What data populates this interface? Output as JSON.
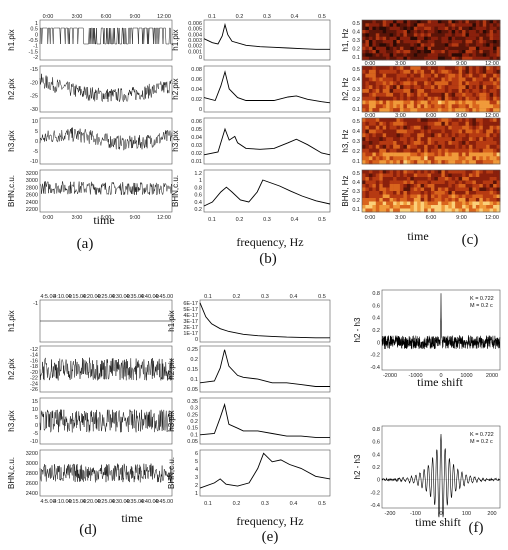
{
  "figure": {
    "panel_letters": [
      "(a)",
      "(b)",
      "(c)",
      "(d)",
      "(e)",
      "(f)"
    ],
    "time_label": "time",
    "frequency_label": "frequency, Hz",
    "time_shift_label": "time shift"
  },
  "chart_data": [
    {
      "id": "a",
      "type": "line",
      "x_kind": "time",
      "x_ticks": [
        "0:00",
        "3:00",
        "6:00",
        "9:00",
        "12:00"
      ],
      "rows": [
        {
          "ylabel": "h1.pix",
          "yticks": [
            "1",
            "0.5",
            "0",
            "-0.5",
            "-1",
            "-1.5",
            "-2"
          ]
        },
        {
          "ylabel": "h2.pix",
          "yticks": [
            "-15",
            "-20",
            "-25",
            "-30"
          ]
        },
        {
          "ylabel": "h3.pix",
          "yticks": [
            "10",
            "5",
            "0",
            "-5",
            "-10"
          ]
        },
        {
          "ylabel": "BHN,c.u.",
          "yticks": [
            "3200",
            "3000",
            "2800",
            "2600",
            "2400",
            "2200"
          ]
        }
      ]
    },
    {
      "id": "b",
      "type": "line",
      "x_kind": "frequency",
      "x_ticks": [
        "0.1",
        "0.2",
        "0.3",
        "0.4",
        "0.5"
      ],
      "xlim": [
        0.05,
        0.5
      ],
      "rows": [
        {
          "ylabel": "h1.pix",
          "yticks": [
            "0.006",
            "0.005",
            "0.004",
            "0.003",
            "0.002",
            "0.001",
            "0"
          ],
          "ylim": [
            0,
            0.006
          ],
          "points": [
            [
              0.05,
              0.0032
            ],
            [
              0.08,
              0.0026
            ],
            [
              0.1,
              0.0024
            ],
            [
              0.115,
              0.0036
            ],
            [
              0.125,
              0.0053
            ],
            [
              0.135,
              0.0038
            ],
            [
              0.15,
              0.0028
            ],
            [
              0.2,
              0.0022
            ],
            [
              0.25,
              0.002
            ],
            [
              0.3,
              0.0019
            ],
            [
              0.35,
              0.0018
            ],
            [
              0.4,
              0.0017
            ],
            [
              0.45,
              0.0016
            ],
            [
              0.5,
              0.0016
            ]
          ]
        },
        {
          "ylabel": "h2.pix",
          "yticks": [
            "0.08",
            "0.06",
            "0.04",
            "0.02",
            "0"
          ],
          "ylim": [
            0,
            0.08
          ],
          "points": [
            [
              0.05,
              0.025
            ],
            [
              0.09,
              0.02
            ],
            [
              0.11,
              0.045
            ],
            [
              0.125,
              0.07
            ],
            [
              0.14,
              0.04
            ],
            [
              0.17,
              0.025
            ],
            [
              0.2,
              0.02
            ],
            [
              0.25,
              0.02
            ],
            [
              0.3,
              0.02
            ],
            [
              0.35,
              0.026
            ],
            [
              0.38,
              0.028
            ],
            [
              0.42,
              0.022
            ],
            [
              0.47,
              0.018
            ],
            [
              0.5,
              0.016
            ]
          ]
        },
        {
          "ylabel": "h3.pix",
          "yticks": [
            "0.06",
            "0.05",
            "0.04",
            "0.03",
            "0.02",
            "0.01"
          ],
          "ylim": [
            0.01,
            0.06
          ],
          "points": [
            [
              0.05,
              0.02
            ],
            [
              0.1,
              0.023
            ],
            [
              0.115,
              0.038
            ],
            [
              0.125,
              0.048
            ],
            [
              0.14,
              0.036
            ],
            [
              0.16,
              0.04
            ],
            [
              0.17,
              0.033
            ],
            [
              0.2,
              0.027
            ],
            [
              0.25,
              0.026
            ],
            [
              0.3,
              0.027
            ],
            [
              0.35,
              0.033
            ],
            [
              0.38,
              0.037
            ],
            [
              0.42,
              0.031
            ],
            [
              0.47,
              0.022
            ],
            [
              0.5,
              0.02
            ]
          ]
        },
        {
          "ylabel": "BHN,c.u.",
          "yticks": [
            "1.2",
            "1",
            "0.8",
            "0.6",
            "0.4",
            "0.2"
          ],
          "ylim": [
            0.2,
            1.25
          ],
          "points": [
            [
              0.05,
              0.35
            ],
            [
              0.08,
              0.45
            ],
            [
              0.11,
              0.7
            ],
            [
              0.13,
              0.82
            ],
            [
              0.15,
              0.7
            ],
            [
              0.18,
              0.5
            ],
            [
              0.21,
              0.45
            ],
            [
              0.24,
              0.7
            ],
            [
              0.26,
              1.0
            ],
            [
              0.28,
              0.95
            ],
            [
              0.32,
              0.85
            ],
            [
              0.36,
              0.72
            ],
            [
              0.4,
              0.6
            ],
            [
              0.45,
              0.48
            ],
            [
              0.5,
              0.4
            ]
          ]
        }
      ]
    },
    {
      "id": "c",
      "type": "heatmap",
      "x_kind": "time",
      "x_ticks": [
        "0:00",
        "3:00",
        "6:00",
        "9:00",
        "12:00"
      ],
      "rows": [
        {
          "ylabel": "h1, Hz",
          "yticks": [
            "0.5",
            "0.4",
            "0.3",
            "0.2",
            "0.1"
          ]
        },
        {
          "ylabel": "h2, Hz",
          "yticks": [
            "0.5",
            "0.4",
            "0.3",
            "0.2",
            "0.1"
          ]
        },
        {
          "ylabel": "h3, Hz",
          "yticks": [
            "0.5",
            "0.4",
            "0.3",
            "0.2",
            "0.1"
          ]
        },
        {
          "ylabel": "BHN, Hz",
          "yticks": [
            "0.5",
            "0.4",
            "0.3",
            "0.2",
            "0.1"
          ]
        }
      ]
    },
    {
      "id": "d",
      "type": "line",
      "x_kind": "time",
      "x_ticks": [
        "4:5.00",
        "4:10.00",
        "4:15.00",
        "4:20.00",
        "4:25.00",
        "4:30.00",
        "4:35.00",
        "4:40.00",
        "4:45.00"
      ],
      "rows": [
        {
          "ylabel": "h1.pix",
          "yticks": [
            "-1"
          ]
        },
        {
          "ylabel": "h2.pix",
          "yticks": [
            "-12",
            "-14",
            "-16",
            "-18",
            "-20",
            "-22",
            "-24",
            "-26"
          ]
        },
        {
          "ylabel": "h3.pix",
          "yticks": [
            "15",
            "10",
            "5",
            "0",
            "-5",
            "-10"
          ]
        },
        {
          "ylabel": "BHN,c.u.",
          "yticks": [
            "3200",
            "3000",
            "2800",
            "2600",
            "2400"
          ]
        }
      ]
    },
    {
      "id": "e",
      "type": "line",
      "x_kind": "frequency",
      "x_ticks": [
        "0.1",
        "0.2",
        "0.3",
        "0.4",
        "0.5"
      ],
      "xlim": [
        0.05,
        0.5
      ],
      "rows": [
        {
          "ylabel": "h1.pix",
          "yticks": [
            "6E-17",
            "5E-17",
            "4E-17",
            "3E-17",
            "2E-17",
            "1E-17",
            "0"
          ],
          "ylim": [
            0,
            6
          ],
          "points": [
            [
              0.05,
              5.6
            ],
            [
              0.07,
              3.6
            ],
            [
              0.09,
              2.6
            ],
            [
              0.12,
              1.9
            ],
            [
              0.15,
              1.5
            ],
            [
              0.2,
              1.1
            ],
            [
              0.25,
              0.9
            ],
            [
              0.3,
              0.8
            ],
            [
              0.35,
              0.7
            ],
            [
              0.4,
              0.65
            ],
            [
              0.45,
              0.6
            ],
            [
              0.5,
              0.6
            ]
          ]
        },
        {
          "ylabel": "h2.pix",
          "yticks": [
            "0.25",
            "0.2",
            "0.15",
            "0.1",
            "0.05"
          ],
          "ylim": [
            0,
            0.25
          ],
          "points": [
            [
              0.05,
              0.05
            ],
            [
              0.1,
              0.06
            ],
            [
              0.12,
              0.13
            ],
            [
              0.135,
              0.23
            ],
            [
              0.15,
              0.14
            ],
            [
              0.18,
              0.09
            ],
            [
              0.2,
              0.08
            ],
            [
              0.25,
              0.07
            ],
            [
              0.3,
              0.05
            ],
            [
              0.35,
              0.05
            ],
            [
              0.4,
              0.04
            ],
            [
              0.45,
              0.03
            ],
            [
              0.5,
              0.03
            ]
          ]
        },
        {
          "ylabel": "h3.pix",
          "yticks": [
            "0.35",
            "0.3",
            "0.25",
            "0.2",
            "0.15",
            "0.1",
            "0.05"
          ],
          "ylim": [
            0,
            0.35
          ],
          "points": [
            [
              0.05,
              0.07
            ],
            [
              0.1,
              0.08
            ],
            [
              0.12,
              0.2
            ],
            [
              0.135,
              0.3
            ],
            [
              0.15,
              0.15
            ],
            [
              0.18,
              0.12
            ],
            [
              0.2,
              0.1
            ],
            [
              0.25,
              0.1
            ],
            [
              0.3,
              0.08
            ],
            [
              0.35,
              0.06
            ],
            [
              0.4,
              0.06
            ],
            [
              0.45,
              0.05
            ],
            [
              0.5,
              0.05
            ]
          ]
        },
        {
          "ylabel": "BHN,c.u.",
          "yticks": [
            "6",
            "5",
            "4",
            "3",
            "2",
            "1"
          ],
          "ylim": [
            0,
            7
          ],
          "points": [
            [
              0.05,
              1.2
            ],
            [
              0.1,
              2.0
            ],
            [
              0.12,
              2.6
            ],
            [
              0.14,
              1.8
            ],
            [
              0.18,
              1.5
            ],
            [
              0.22,
              2.0
            ],
            [
              0.25,
              4.2
            ],
            [
              0.27,
              6.5
            ],
            [
              0.3,
              5.2
            ],
            [
              0.33,
              5.5
            ],
            [
              0.36,
              4.8
            ],
            [
              0.4,
              4.2
            ],
            [
              0.45,
              3.0
            ],
            [
              0.5,
              2.6
            ]
          ]
        }
      ]
    },
    {
      "id": "f",
      "type": "line",
      "x_kind": "time_shift",
      "plots": [
        {
          "ylabel": "h2 - h3",
          "x_ticks": [
            "-2000",
            "-1000",
            "0",
            "1000",
            "2000"
          ],
          "xlim": [
            -2700,
            2700
          ],
          "yticks": [
            "0.8",
            "0.6",
            "0.4",
            "0.2",
            "0",
            "-0.2",
            "-0.4"
          ],
          "ylim": [
            -0.45,
            0.85
          ],
          "K": "K = 0.722",
          "M": "M = 0.2 c"
        },
        {
          "ylabel": "h2 - h3",
          "x_ticks": [
            "-200",
            "-100",
            "0",
            "100",
            "200"
          ],
          "xlim": [
            -210,
            210
          ],
          "yticks": [
            "0.8",
            "0.6",
            "0.4",
            "0.2",
            "0",
            "-0.2",
            "-0.4"
          ],
          "ylim": [
            -0.45,
            0.85
          ],
          "K": "K = 0.722",
          "M": "M = 0.2 c"
        }
      ]
    }
  ]
}
